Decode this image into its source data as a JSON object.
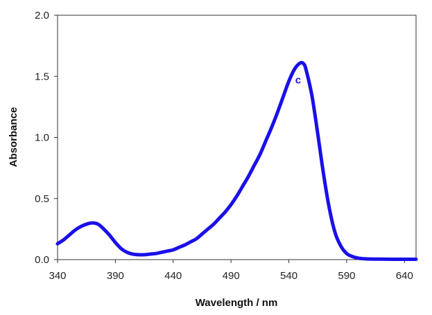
{
  "chart_data": {
    "type": "line",
    "xlabel": "Wavelength / nm",
    "ylabel": "Absorbance",
    "xlim": [
      340,
      650
    ],
    "ylim": [
      0,
      2.0
    ],
    "x_ticks": [
      "340",
      "390",
      "440",
      "490",
      "540",
      "590",
      "640"
    ],
    "y_ticks": [
      "0.0",
      "0.5",
      "1.0",
      "1.5",
      "2.0"
    ],
    "grid": false,
    "legend": "none",
    "series_color": "#1a10e8",
    "series": [
      {
        "x": [
          340,
          345,
          350,
          355,
          360,
          365,
          370,
          375,
          380,
          385,
          390,
          395,
          400,
          405,
          410,
          415,
          420,
          425,
          430,
          435,
          440,
          445,
          450,
          455,
          460,
          465,
          470,
          475,
          480,
          485,
          490,
          495,
          500,
          505,
          510,
          515,
          520,
          525,
          530,
          535,
          540,
          545,
          550,
          553,
          555,
          560,
          565,
          570,
          575,
          580,
          585,
          590,
          595,
          600,
          605,
          610,
          620,
          630,
          640,
          650
        ],
        "y": [
          0.13,
          0.16,
          0.2,
          0.24,
          0.27,
          0.29,
          0.3,
          0.29,
          0.25,
          0.2,
          0.14,
          0.09,
          0.06,
          0.045,
          0.04,
          0.04,
          0.045,
          0.05,
          0.06,
          0.07,
          0.08,
          0.1,
          0.12,
          0.145,
          0.17,
          0.21,
          0.25,
          0.29,
          0.34,
          0.39,
          0.45,
          0.52,
          0.6,
          0.68,
          0.77,
          0.86,
          0.97,
          1.08,
          1.2,
          1.33,
          1.46,
          1.56,
          1.61,
          1.6,
          1.55,
          1.34,
          1.03,
          0.7,
          0.42,
          0.22,
          0.11,
          0.05,
          0.025,
          0.012,
          0.007,
          0.005,
          0.004,
          0.003,
          0.003,
          0.003
        ]
      }
    ],
    "annotations": [
      {
        "text": "c",
        "x": 548,
        "y": 1.47
      }
    ]
  }
}
